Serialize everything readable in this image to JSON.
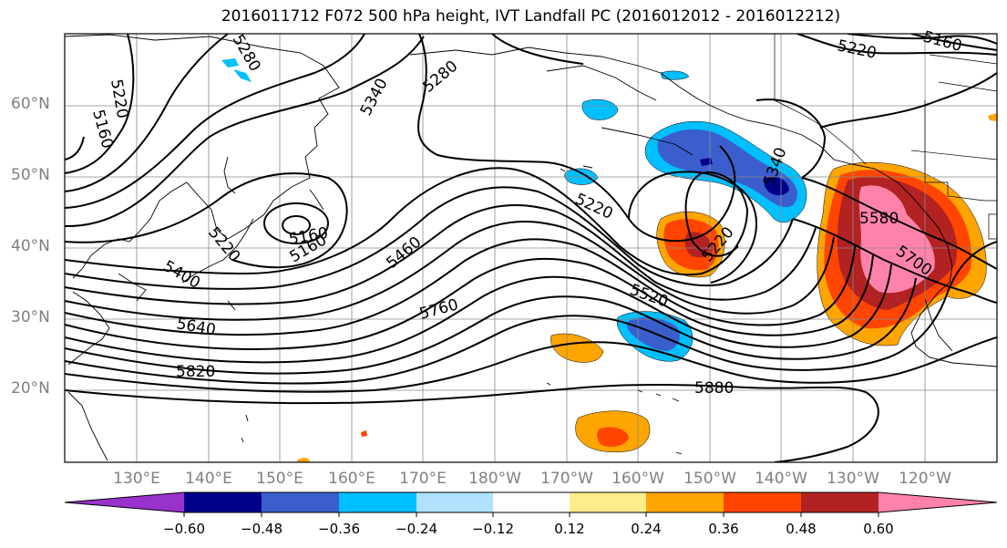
{
  "title": "2016011712 F072 500 hPa height, IVT Landfall PC (2016012012 - 2016012212)",
  "lat_labels": [
    "60°N",
    "50°N",
    "40°N",
    "30°N",
    "20°N"
  ],
  "lon_labels": [
    "130°E",
    "140°E",
    "150°E",
    "160°E",
    "170°E",
    "180°W",
    "170°W",
    "160°W",
    "150°W",
    "140°W",
    "130°W",
    "120°W"
  ],
  "colorbar": {
    "ticks": [
      "−0.60",
      "−0.48",
      "−0.36",
      "−0.24",
      "−0.12",
      "0.12",
      "0.24",
      "0.36",
      "0.48",
      "0.60"
    ],
    "colors": [
      "#9932cc",
      "#00008b",
      "#3a5fcd",
      "#00bfff",
      "#b0e2ff",
      "#ffffff",
      "#ffec8b",
      "#ffa500",
      "#ff4500",
      "#b22222",
      "#ff82ab"
    ]
  },
  "contour_labels": [
    "5280",
    "5340",
    "5220",
    "5160",
    "5220",
    "5160",
    "5280",
    "5160",
    "5220",
    "5400",
    "5460",
    "5520",
    "5580",
    "5640",
    "5700",
    "5760",
    "5820",
    "5880",
    "5220",
    "5340",
    "5220",
    "5160"
  ]
}
